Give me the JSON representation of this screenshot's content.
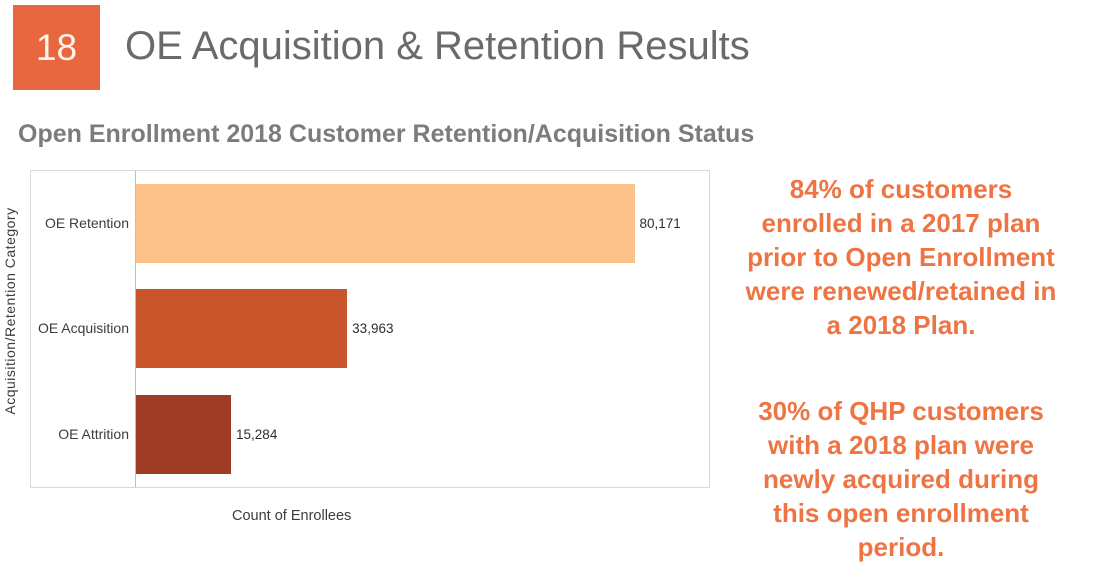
{
  "slide": {
    "number": "18",
    "title": "OE Acquisition & Retention Results"
  },
  "chart_data": {
    "type": "bar",
    "orientation": "horizontal",
    "title": "Open Enrollment 2018 Customer Retention/Acquisition Status",
    "xlabel": "Count of Enrollees",
    "ylabel": "Acquisition/Retention Category",
    "categories": [
      "OE Retention",
      "OE Acquisition",
      "OE Attrition"
    ],
    "values": [
      80171,
      33963,
      15284
    ],
    "value_labels": [
      "80,171",
      "33,963",
      "15,284"
    ],
    "bar_colors": [
      "#FBC189",
      "#C9552B",
      "#9E3C26"
    ],
    "xlim": [
      0,
      92150
    ],
    "grid": false,
    "legend": "none"
  },
  "notes": {
    "retention": "84% of customers\nenrolled in a 2017 plan\nprior to Open Enrollment\nwere renewed/retained in\na 2018 Plan.",
    "acquisition": "30% of QHP customers\nwith a 2018 plan were\nnewly acquired during\nthis open enrollment\nperiod."
  },
  "colors": {
    "accent_orange": "#E8673F",
    "note_orange": "#EE7444",
    "title_gray": "#6A6A6A",
    "chart_title_gray": "#7C7C7C",
    "axis_line_gray": "#BFBFBF",
    "chart_border_gray": "#D9D9D9"
  }
}
